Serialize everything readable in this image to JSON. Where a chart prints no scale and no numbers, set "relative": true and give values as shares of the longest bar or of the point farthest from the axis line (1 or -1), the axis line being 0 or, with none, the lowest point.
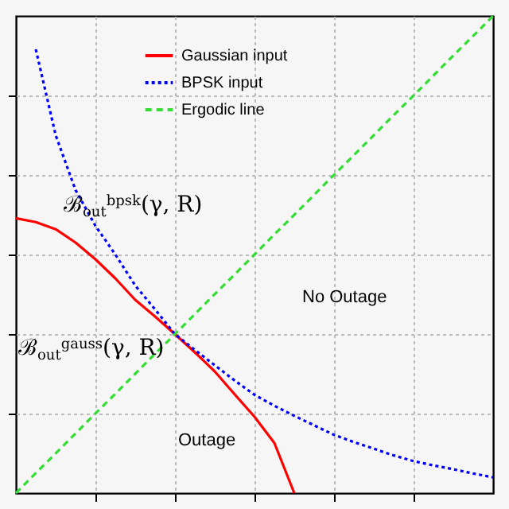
{
  "chart_data": {
    "type": "line",
    "relative": true,
    "grid": true,
    "legend": "top",
    "marker": "none",
    "categories": [
      null,
      null,
      null,
      null,
      null,
      null,
      null,
      null,
      null,
      null,
      null,
      null,
      null,
      null,
      null,
      null,
      null,
      null,
      null,
      null,
      null,
      null,
      null,
      null,
      null
    ],
    "series": [
      {
        "name": "Gaussian input",
        "color": "#ff0000",
        "line_style": "solid",
        "values": [
          0.576,
          0.568,
          0.553,
          0.525,
          0.49,
          0.45,
          0.405,
          0.37,
          0.333,
          0.295,
          0.255,
          0.207,
          0.16,
          0.105,
          0,
          null,
          null,
          null,
          null,
          null,
          null,
          null,
          null,
          null,
          null
        ]
      },
      {
        "name": "BPSK input",
        "color": "#0000ff",
        "line_style": "dotted",
        "values": [
          null,
          0.93,
          0.75,
          0.635,
          0.56,
          0.5,
          0.435,
          0.385,
          0.333,
          0.3,
          0.268,
          0.236,
          0.206,
          0.183,
          0.162,
          0.142,
          0.122,
          0.107,
          0.093,
          0.079,
          0.067,
          0.058,
          0.05,
          0.041,
          0.033
        ]
      },
      {
        "name": "Ergodic line",
        "color": "#33dd33",
        "line_style": "dashed",
        "values": [
          0,
          0.042,
          0.083,
          0.125,
          0.167,
          0.208,
          0.25,
          0.292,
          0.333,
          0.375,
          0.417,
          0.458,
          0.5,
          0.542,
          0.583,
          0.625,
          0.667,
          0.708,
          0.75,
          0.792,
          0.833,
          0.875,
          0.917,
          0.958,
          1
        ]
      }
    ],
    "annotations": [
      "ℬ$_{out}$$^{bpsk}$(γ, R)",
      "ℬ$_{out}$$^{gauss}$(γ, R)",
      "No Outage",
      "Outage"
    ]
  }
}
